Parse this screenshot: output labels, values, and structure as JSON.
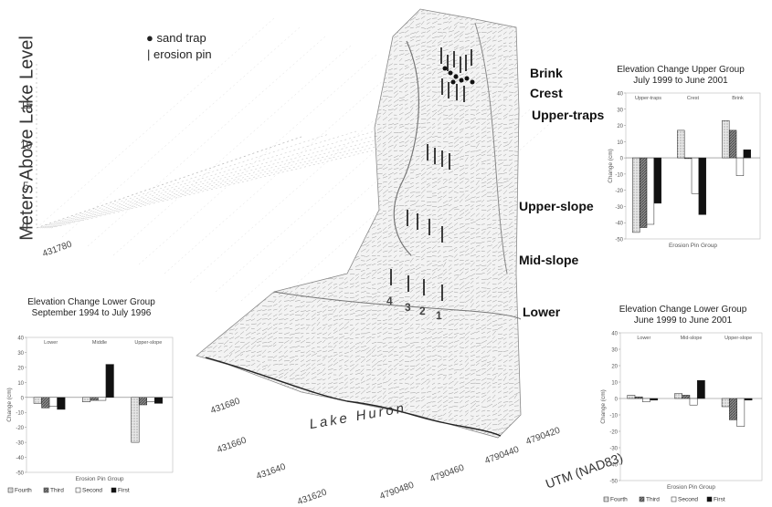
{
  "main": {
    "ylabel": "Meters Above Lake Level",
    "yticks": [
      "15",
      "10",
      "5",
      "0"
    ],
    "legend": {
      "sand_trap": "sand trap",
      "erosion_pin": "erosion pin"
    },
    "zones": [
      "Brink",
      "Crest",
      "Upper-traps",
      "Upper-slope",
      "Mid-slope",
      "Lower"
    ],
    "lake_label": "Lake Huron",
    "utm_label": "UTM (NAD83)",
    "pin_numbers": [
      "4",
      "3",
      "2",
      "1"
    ],
    "x_ticks": [
      "431780",
      "431680",
      "431660",
      "431640",
      "431620"
    ],
    "y_ticks": [
      "4790480",
      "4790460",
      "4790440",
      "4790420"
    ]
  },
  "chart_data": [
    {
      "type": "bar",
      "title": "Elevation Change Upper Group",
      "subtitle": "July 1999 to June 2001",
      "ylabel": "Change (cm)",
      "xlabel": "Erosion Pin Group",
      "categories": [
        "Upper-traps",
        "Crest",
        "Brink"
      ],
      "ylim": [
        -50,
        40
      ],
      "yticks": [
        40,
        30,
        20,
        10,
        0,
        -10,
        -20,
        -30,
        -40,
        -50
      ],
      "series": [
        {
          "name": "Fourth",
          "values": [
            -46,
            17,
            23
          ]
        },
        {
          "name": "Third",
          "values": [
            -43,
            0,
            17
          ]
        },
        {
          "name": "Second",
          "values": [
            -41,
            -22,
            -11
          ]
        },
        {
          "name": "First",
          "values": [
            -28,
            -35,
            5
          ]
        }
      ]
    },
    {
      "type": "bar",
      "title": "Elevation Change Lower Group",
      "subtitle": "September 1994 to July 1996",
      "ylabel": "Change (cm)",
      "xlabel": "Erosion Pin Group",
      "categories": [
        "Lower",
        "Middle",
        "Upper-slope"
      ],
      "ylim": [
        -50,
        40
      ],
      "yticks": [
        40,
        30,
        20,
        10,
        0,
        -10,
        -20,
        -30,
        -40,
        -50
      ],
      "series": [
        {
          "name": "Fourth",
          "values": [
            -4,
            -3,
            -30
          ]
        },
        {
          "name": "Third",
          "values": [
            -7,
            -2,
            -5
          ]
        },
        {
          "name": "Second",
          "values": [
            -6,
            -2,
            -3
          ]
        },
        {
          "name": "First",
          "values": [
            -8,
            22,
            -4
          ]
        }
      ]
    },
    {
      "type": "bar",
      "title": "Elevation Change Lower Group",
      "subtitle": "June 1999 to June 2001",
      "ylabel": "Change (cm)",
      "xlabel": "Erosion Pin Group",
      "categories": [
        "Lower",
        "Mid-slope",
        "Upper-slope"
      ],
      "ylim": [
        -50,
        40
      ],
      "yticks": [
        40,
        30,
        20,
        10,
        0,
        -10,
        -20,
        -30,
        -40,
        -50
      ],
      "series": [
        {
          "name": "Fourth",
          "values": [
            2,
            3,
            -5
          ]
        },
        {
          "name": "Third",
          "values": [
            1,
            2,
            -13
          ]
        },
        {
          "name": "Second",
          "values": [
            -2,
            -4,
            -17
          ]
        },
        {
          "name": "First",
          "values": [
            -1,
            11,
            -1
          ]
        }
      ]
    }
  ],
  "colors": {
    "fourth": "#bdbdbd",
    "third": "#7a7a7a",
    "second": "#ffffff",
    "first": "#111111"
  }
}
